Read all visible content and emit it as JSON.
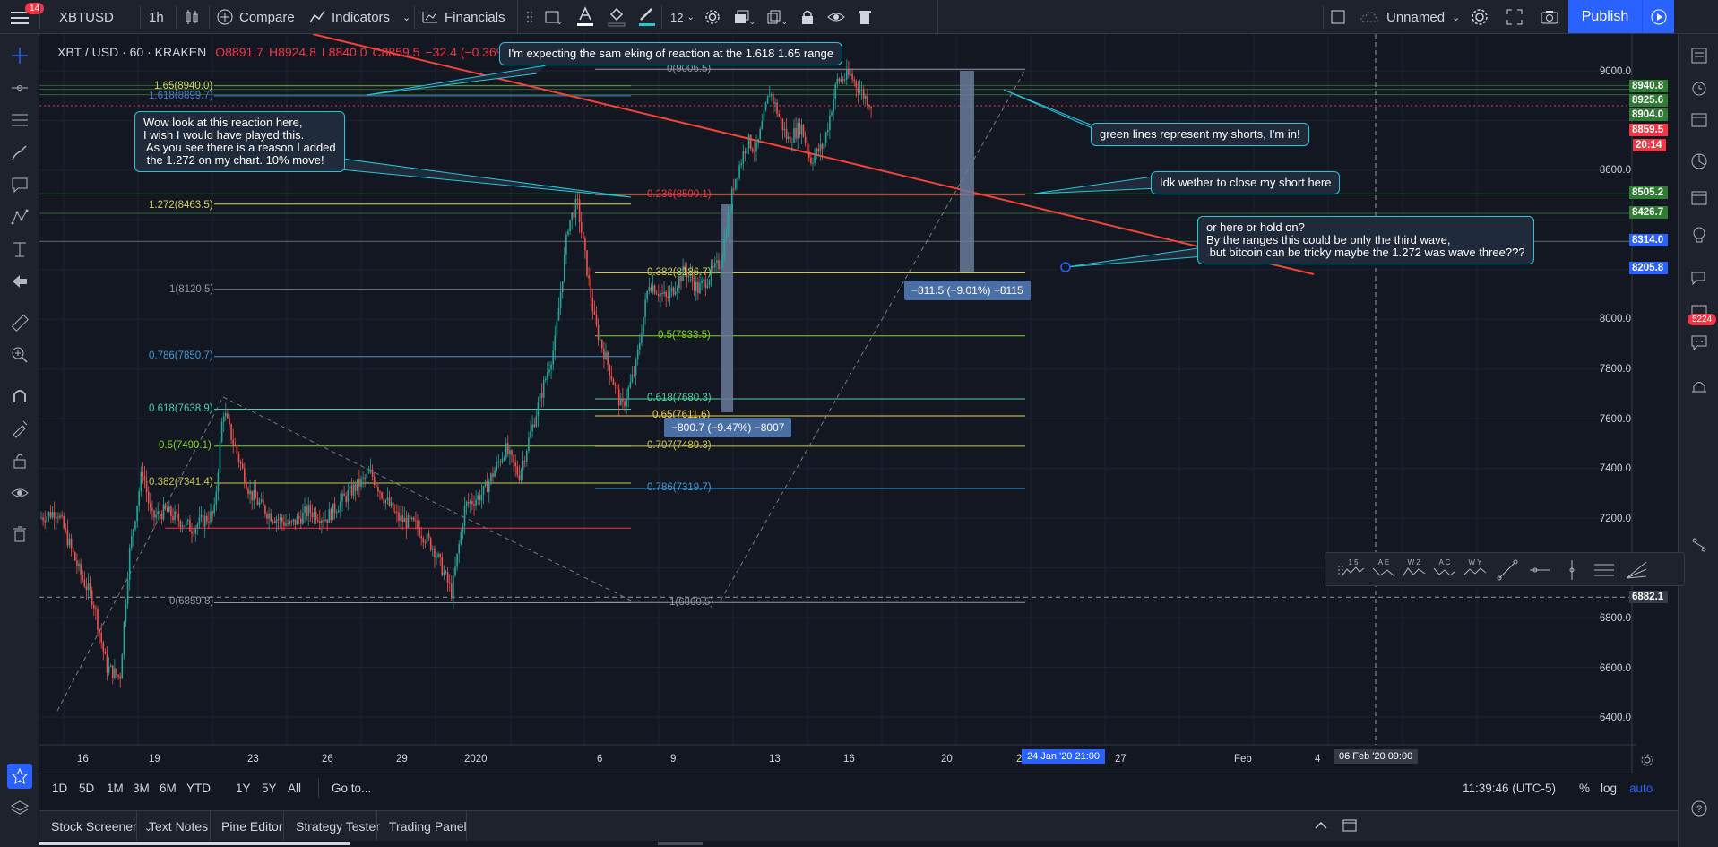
{
  "notification_count": "14",
  "symbol": "XBTUSD",
  "interval": "1h",
  "toolbar": {
    "compare": "Compare",
    "indicators": "Indicators",
    "financials": "Financials",
    "line_width": "12",
    "layout_name": "Unnamed",
    "publish": "Publish"
  },
  "legend": {
    "title": "XBT / USD · 60 · KRAKEN",
    "open": "O8891.7",
    "high": "H8924.8",
    "low": "L8840.0",
    "close": "C8859.5",
    "change": "−32.4 (−0.36%)"
  },
  "colors": {
    "accent": "#2962ff",
    "callout_border": "#26c6da",
    "down": "#f23645",
    "up": "#26a69a",
    "trendline": "#f44336"
  },
  "callouts": [
    "I'm expecting the sam eking of reaction at the 1.618 1.65 range",
    "Wow look at this reaction here,\nI wish I would have played this.\n As you see there is a reason I added\n the 1.272 on my chart. 10% move!",
    "green lines represent my shorts, I'm in!",
    "Idk wether to close my short here",
    "or here or hold on?\nBy the ranges this could be only the third wave,\n but bitcoin can be tricky maybe the 1.272 was wave three???"
  ],
  "fib_left": [
    {
      "label": "1.65(8940.0)",
      "color": "#d4d45a"
    },
    {
      "label": "1.618(8899.7)",
      "color": "#4a7bd4"
    },
    {
      "label": "1.272(8463.5)",
      "color": "#d4d45a"
    },
    {
      "label": "1(8120.5)",
      "color": "#9598a1"
    },
    {
      "label": "0.786(7850.7)",
      "color": "#3f9bd6"
    },
    {
      "label": "0.618(7638.9)",
      "color": "#4fd1a5"
    },
    {
      "label": "0.5(7490.1)",
      "color": "#7ed321"
    },
    {
      "label": "0.382(7341.4)",
      "color": "#c8c84a"
    },
    {
      "label": "0(6859.8)",
      "color": "#9598a1"
    }
  ],
  "fib_right": [
    {
      "label": "0(9006.5)",
      "color": "#9598a1"
    },
    {
      "label": "0.236(8500.1)",
      "color": "#f23645"
    },
    {
      "label": "0.382(8186.7)",
      "color": "#c8c84a"
    },
    {
      "label": "0.5(7933.5)",
      "color": "#7ed321"
    },
    {
      "label": "0.618(7680.3)",
      "color": "#4fd1a5"
    },
    {
      "label": "0.65(7611.6)",
      "color": "#f5d142"
    },
    {
      "label": "0.707(7489.3)",
      "color": "#c8c84a"
    },
    {
      "label": "0.786(7319.7)",
      "color": "#3f9bd6"
    },
    {
      "label": "1(6860.5)",
      "color": "#9598a1"
    }
  ],
  "measures": [
    "−800.7 (−9.47%) −8007",
    "−811.5 (−9.01%) −8115"
  ],
  "price_axis": [
    "9000.0",
    "8600.0",
    "8000.0",
    "7800.0",
    "7600.0",
    "7400.0",
    "7200.0",
    "6800.0",
    "6600.0",
    "6400.0"
  ],
  "price_tags": [
    {
      "value": "8940.8",
      "color": "#2e7d32"
    },
    {
      "value": "8925.6",
      "color": "#2e7d32"
    },
    {
      "value": "8904.0",
      "color": "#2e7d32"
    },
    {
      "value": "8859.5",
      "color": "#f23645"
    },
    {
      "value": "20:14",
      "color": "#f23645"
    },
    {
      "value": "8505.2",
      "color": "#2e7d32"
    },
    {
      "value": "8426.7",
      "color": "#2e7d32"
    },
    {
      "value": "8314.0",
      "color": "#2962ff"
    },
    {
      "value": "8205.8",
      "color": "#2962ff"
    },
    {
      "value": "6882.1",
      "color": "#363a45"
    }
  ],
  "time_axis": [
    "16",
    "19",
    "23",
    "26",
    "29",
    "2020",
    "6",
    "9",
    "13",
    "16",
    "20",
    "23",
    "27",
    "Feb",
    "4"
  ],
  "time_cursor_1": "24 Jan '20   21:00",
  "time_cursor_2": "06 Feb '20   09:00",
  "ranges": [
    "1D",
    "5D",
    "1M",
    "3M",
    "6M",
    "YTD",
    "1Y",
    "5Y",
    "All"
  ],
  "goto": "Go to...",
  "clock": "11:39:46 (UTC-5)",
  "scale_opts": [
    "%",
    "log",
    "auto"
  ],
  "bottom_tabs": [
    "Stock Screener",
    "Text Notes",
    "Pine Editor",
    "Strategy Tester",
    "Trading Panel"
  ],
  "chat_badge": "5224",
  "float_tools": [
    "1 5",
    "A E",
    "W Z",
    "A C",
    "W Y"
  ]
}
